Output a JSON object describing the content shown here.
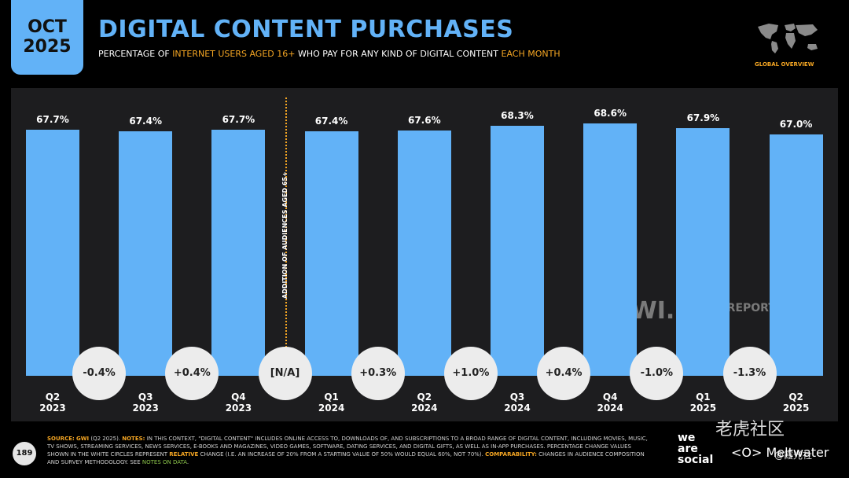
{
  "header": {
    "month": "OCT",
    "year": "2025",
    "title": "DIGITAL CONTENT PURCHASES",
    "subtitle_parts": [
      "PERCENTAGE OF ",
      "INTERNET USERS AGED 16+",
      " WHO PAY FOR ANY KIND OF DIGITAL CONTENT ",
      "EACH MONTH"
    ],
    "map_label": "GLOBAL OVERVIEW"
  },
  "chart_data": {
    "type": "bar",
    "title": "",
    "xlabel": "",
    "ylabel": "",
    "categories": [
      [
        "Q2",
        "2023"
      ],
      [
        "Q3",
        "2023"
      ],
      [
        "Q4",
        "2023"
      ],
      [
        "Q1",
        "2024"
      ],
      [
        "Q2",
        "2024"
      ],
      [
        "Q3",
        "2024"
      ],
      [
        "Q4",
        "2024"
      ],
      [
        "Q1",
        "2025"
      ],
      [
        "Q2",
        "2025"
      ]
    ],
    "values": [
      67.7,
      67.4,
      67.7,
      67.4,
      67.6,
      68.3,
      68.6,
      67.9,
      67.0
    ],
    "value_labels": [
      "67.7%",
      "67.4%",
      "67.7%",
      "67.4%",
      "67.6%",
      "68.3%",
      "68.6%",
      "67.9%",
      "67.0%"
    ],
    "changes": [
      "-0.4%",
      "+0.4%",
      "[N/A]",
      "+0.3%",
      "+1.0%",
      "+0.4%",
      "-1.0%",
      "-1.3%"
    ],
    "annotation": "ADDITION OF AUDIENCES AGED 65+",
    "colors": {
      "bar": "#62b2f7",
      "highlight": "#f5a623",
      "panel": "#1d1d1f"
    }
  },
  "watermarks": {
    "gwi": "GWI.",
    "datareportal": "DATAREPORTAL"
  },
  "footer": {
    "page_number": "189",
    "notes_source_key": "SOURCE:",
    "notes_source_gwi": "GWI",
    "notes_source_val": " (Q2 2025). ",
    "notes_notes_key": "NOTES:",
    "notes_text_1": " IN THIS CONTEXT, \"DIGITAL CONTENT\" INCLUDES ONLINE ACCESS TO, DOWNLOADS OF, AND SUBSCRIPTIONS TO A BROAD RANGE OF DIGITAL CONTENT, INCLUDING MOVIES, MUSIC, TV SHOWS, STREAMING SERVICES, NEWS SERVICES, E-BOOKS AND MAGAZINES, VIDEO GAMES, SOFTWARE, DATING SERVICES, AND DIGITAL GIFTS, AS WELL AS IN-APP PURCHASES. PERCENTAGE CHANGE VALUES SHOWN IN THE WHITE CIRCLES REPRESENT ",
    "notes_relative": "RELATIVE",
    "notes_text_2": " CHANGE (I.E. AN INCREASE OF 20% FROM A STARTING VALUE OF 50% WOULD EQUAL 60%, NOT 70%). ",
    "notes_comparability_key": "COMPARABILITY:",
    "notes_text_3": " CHANGES IN AUDIENCE COMPOSITION AND SURVEY METHODOLOGY. SEE ",
    "notes_link": "NOTES ON DATA",
    "notes_end": ".",
    "brand_line1": "we",
    "brand_line2": "are",
    "brand_line3": "social",
    "brand_meltwater": "Meltwater",
    "corner_watermark": "老虎社区",
    "corner_handle": "@霞光社"
  }
}
